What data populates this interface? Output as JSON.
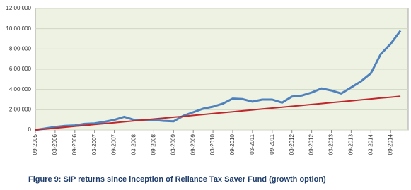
{
  "chart_data": {
    "type": "line",
    "caption": "Figure 9: SIP returns since inception of Reliance Tax Saver Fund (growth option)",
    "categories": [
      "09-2005",
      null,
      "03-2006",
      null,
      "09-2006",
      null,
      "03-2007",
      null,
      "09-2007",
      null,
      "03-2008",
      null,
      "09-2008",
      null,
      "03-2009",
      null,
      "09-2009",
      null,
      "03-2010",
      null,
      "09-2010",
      null,
      "03-2011",
      null,
      "09-2011",
      null,
      "03-2012",
      null,
      "09-2012",
      null,
      "03-2013",
      null,
      "09-2013",
      null,
      "03-2014",
      null,
      "09-2014",
      null
    ],
    "series": [
      {
        "color": "#4f81bd",
        "values": [
          0,
          15000,
          30000,
          40000,
          45000,
          60000,
          65000,
          80000,
          100000,
          130000,
          100000,
          95000,
          100000,
          90000,
          85000,
          140000,
          175000,
          210000,
          230000,
          260000,
          310000,
          305000,
          280000,
          300000,
          300000,
          270000,
          330000,
          340000,
          370000,
          410000,
          390000,
          360000,
          420000,
          480000,
          560000,
          750000,
          850000,
          980000
        ]
      },
      {
        "color": "#c0272d",
        "values": [
          0,
          9000,
          18000,
          27000,
          36000,
          45000,
          54000,
          63000,
          72000,
          81000,
          90000,
          99000,
          108000,
          117000,
          126000,
          135000,
          144000,
          153000,
          162000,
          171000,
          180000,
          189000,
          198000,
          207000,
          216000,
          225000,
          234000,
          243000,
          252000,
          261000,
          270000,
          279000,
          288000,
          297000,
          306000,
          315000,
          324000,
          333000
        ]
      }
    ],
    "ylim": [
      0,
      1200000
    ],
    "yticks": [
      0,
      {
        "value": 200000,
        "label": "2,00,000"
      },
      {
        "value": 400000,
        "label": "4,00,000"
      },
      {
        "value": 600000,
        "label": "6,00,000"
      },
      {
        "value": 800000,
        "label": "8,00,000"
      },
      {
        "value": 1000000,
        "label": "10,00,000"
      },
      {
        "value": 1200000,
        "label": "12,00,000"
      }
    ],
    "grid": true
  }
}
